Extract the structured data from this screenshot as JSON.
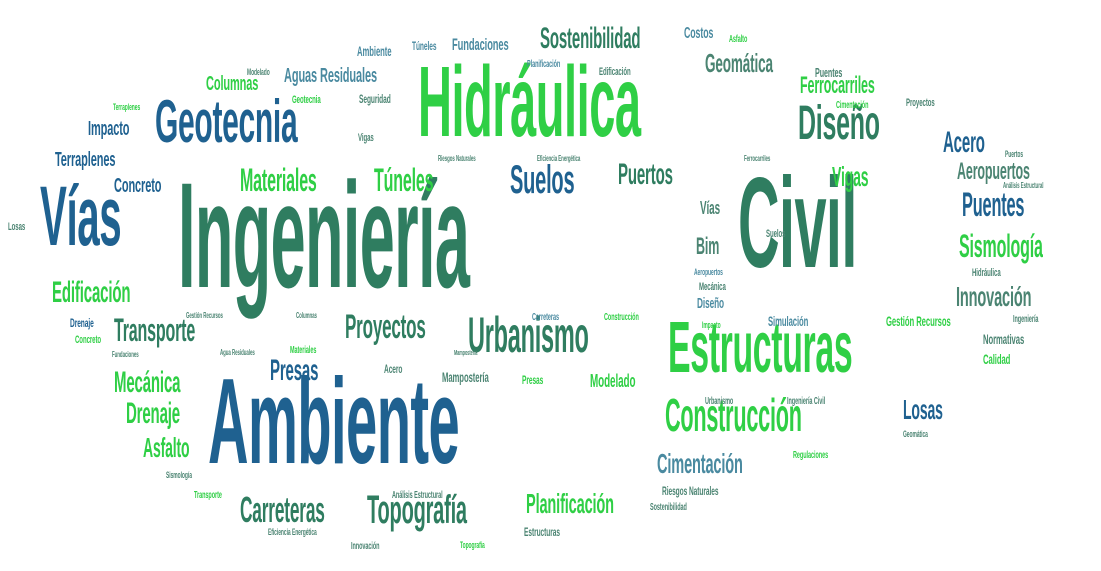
{
  "word_cloud": {
    "words": [
      {
        "text": "Ingeniería",
        "weight": 100,
        "color": "#2f7d60"
      },
      {
        "text": "Civil",
        "weight": 92,
        "color": "#2f7d60"
      },
      {
        "text": "Ambiente",
        "weight": 78,
        "color": "#1f6190"
      },
      {
        "text": "Hidráulica",
        "weight": 68,
        "color": "#2fcf45"
      },
      {
        "text": "Vías",
        "weight": 62,
        "color": "#1f6190"
      },
      {
        "text": "Estructuras",
        "weight": 58,
        "color": "#2fcf45"
      },
      {
        "text": "Geotecnia",
        "weight": 48,
        "color": "#1f6190"
      },
      {
        "text": "Diseño",
        "weight": 42,
        "color": "#2f7d60"
      },
      {
        "text": "Urbanismo",
        "weight": 40,
        "color": "#2f7d60"
      },
      {
        "text": "Construcción",
        "weight": 38,
        "color": "#2fcf45"
      },
      {
        "text": "Suelos",
        "weight": 34,
        "color": "#1f6190"
      },
      {
        "text": "Topografía",
        "weight": 32,
        "color": "#2f7d60"
      },
      {
        "text": "Proyectos",
        "weight": 30,
        "color": "#2f7d60"
      },
      {
        "text": "Carreteras",
        "weight": 28,
        "color": "#2f7d60"
      },
      {
        "text": "Materiales",
        "weight": 28,
        "color": "#2fcf45"
      },
      {
        "text": "Túneles",
        "weight": 28,
        "color": "#2fcf45"
      },
      {
        "text": "Puertos",
        "weight": 27,
        "color": "#2f7d60"
      },
      {
        "text": "Puentes",
        "weight": 27,
        "color": "#1f6190"
      },
      {
        "text": "Transporte",
        "weight": 27,
        "color": "#2f7d60"
      },
      {
        "text": "Sismología",
        "weight": 25,
        "color": "#2fcf45"
      },
      {
        "text": "Cimentación",
        "weight": 25,
        "color": "#4a8aa0"
      },
      {
        "text": "Edificación",
        "weight": 25,
        "color": "#2fcf45"
      },
      {
        "text": "Sostenibilidad",
        "weight": 24,
        "color": "#2f7d60"
      },
      {
        "text": "Mecánica",
        "weight": 24,
        "color": "#2fcf45"
      },
      {
        "text": "Presas",
        "weight": 24,
        "color": "#1f6190"
      },
      {
        "text": "Innovación",
        "weight": 24,
        "color": "#4b8472"
      },
      {
        "text": "Drenaje",
        "weight": 23,
        "color": "#2fcf45"
      },
      {
        "text": "Asfalto",
        "weight": 23,
        "color": "#2fcf45"
      },
      {
        "text": "Planificación",
        "weight": 23,
        "color": "#2fcf45"
      },
      {
        "text": "Acero",
        "weight": 23,
        "color": "#1f6190"
      },
      {
        "text": "Vigas",
        "weight": 22,
        "color": "#2fcf45"
      },
      {
        "text": "Losas",
        "weight": 22,
        "color": "#1f6190"
      },
      {
        "text": "Geomática",
        "weight": 21,
        "color": "#4b8472"
      },
      {
        "text": "Ferrocarriles",
        "weight": 21,
        "color": "#2fcf45"
      },
      {
        "text": "Aeropuertos",
        "weight": 20,
        "color": "#4b8472"
      },
      {
        "text": "Bim",
        "weight": 20,
        "color": "#4b8472"
      },
      {
        "text": "Impacto",
        "weight": 18,
        "color": "#1f6190"
      },
      {
        "text": "Terraplenes",
        "weight": 18,
        "color": "#1f6190"
      },
      {
        "text": "Concreto",
        "weight": 18,
        "color": "#1f6190"
      },
      {
        "text": "Columnas",
        "weight": 18,
        "color": "#2fcf45"
      },
      {
        "text": "Aguas Residuales",
        "weight": 18,
        "color": "#4a8aa0"
      },
      {
        "text": "Fundaciones",
        "weight": 16,
        "color": "#4a8aa0"
      },
      {
        "text": "Costos",
        "weight": 15,
        "color": "#4a8aa0"
      },
      {
        "text": "Modelado",
        "weight": 16,
        "color": "#2fcf45"
      },
      {
        "text": "Mampostería",
        "weight": 13,
        "color": "#4b8472"
      },
      {
        "text": "Vías",
        "weight": 16,
        "color": "#4b8472"
      },
      {
        "text": "Simulación",
        "weight": 13,
        "color": "#4a8aa0"
      },
      {
        "text": "Gestión Recursos",
        "weight": 13,
        "color": "#2fcf45"
      },
      {
        "text": "Normativas",
        "weight": 13,
        "color": "#4b8472"
      },
      {
        "text": "Calidad",
        "weight": 13,
        "color": "#2fcf45"
      },
      {
        "text": "Hidráulica",
        "weight": 10,
        "color": "#4b8472"
      },
      {
        "text": "Ambiente",
        "weight": 12,
        "color": "#4a8aa0"
      },
      {
        "text": "Túneles",
        "weight": 10,
        "color": "#4a8aa0"
      },
      {
        "text": "Seguridad",
        "weight": 11,
        "color": "#4b8472"
      },
      {
        "text": "Geotecnia",
        "weight": 9,
        "color": "#2fcf45"
      },
      {
        "text": "Proyectos",
        "weight": 9,
        "color": "#4b8472"
      },
      {
        "text": "Cimentación",
        "weight": 9,
        "color": "#2fcf45"
      },
      {
        "text": "Edificación",
        "weight": 10,
        "color": "#4b8472"
      },
      {
        "text": "Planificación",
        "weight": 9,
        "color": "#4a8aa0"
      },
      {
        "text": "Asfalto",
        "weight": 9,
        "color": "#2fcf45"
      },
      {
        "text": "Puentes",
        "weight": 11,
        "color": "#4b8472"
      },
      {
        "text": "Modelado",
        "weight": 8,
        "color": "#4b8472"
      },
      {
        "text": "Terraplenes",
        "weight": 8,
        "color": "#2fcf45"
      },
      {
        "text": "Vigas",
        "weight": 9,
        "color": "#4b8472"
      },
      {
        "text": "Riesgos Naturales",
        "weight": 7,
        "color": "#4b8472"
      },
      {
        "text": "Eficiencia Energética",
        "weight": 7,
        "color": "#4b8472"
      },
      {
        "text": "Ferrocarriles",
        "weight": 7,
        "color": "#4b8472"
      },
      {
        "text": "Puertos",
        "weight": 8,
        "color": "#4b8472"
      },
      {
        "text": "Análisis Estructural",
        "weight": 7,
        "color": "#4b8472"
      },
      {
        "text": "Losas",
        "weight": 9,
        "color": "#4b8472"
      },
      {
        "text": "Suelos",
        "weight": 9,
        "color": "#4b8472"
      },
      {
        "text": "Aeropuertos",
        "weight": 8,
        "color": "#4a8aa0"
      },
      {
        "text": "Mecánica",
        "weight": 9,
        "color": "#4b8472"
      },
      {
        "text": "Diseño",
        "weight": 13,
        "color": "#4a8aa0"
      },
      {
        "text": "Impacto",
        "weight": 8,
        "color": "#2fcf45"
      },
      {
        "text": "Ingeniería",
        "weight": 8,
        "color": "#4b8472"
      },
      {
        "text": "Drenaje",
        "weight": 10,
        "color": "#1f6190"
      },
      {
        "text": "Concreto",
        "weight": 9,
        "color": "#2fcf45"
      },
      {
        "text": "Fundaciones",
        "weight": 7,
        "color": "#4b8472"
      },
      {
        "text": "Gestión Recursos",
        "weight": 7,
        "color": "#4b8472"
      },
      {
        "text": "Agua Residuales",
        "weight": 7,
        "color": "#4b8472"
      },
      {
        "text": "Columnas",
        "weight": 7,
        "color": "#4b8472"
      },
      {
        "text": "Materiales",
        "weight": 8,
        "color": "#2fcf45"
      },
      {
        "text": "Carreteras",
        "weight": 8,
        "color": "#4a8aa0"
      },
      {
        "text": "Construcción",
        "weight": 8,
        "color": "#2fcf45"
      },
      {
        "text": "Mampostería",
        "weight": 7,
        "color": "#4b8472"
      },
      {
        "text": "Acero",
        "weight": 10,
        "color": "#4b8472"
      },
      {
        "text": "Presas",
        "weight": 10,
        "color": "#2fcf45"
      },
      {
        "text": "Urbanismo",
        "weight": 8,
        "color": "#4b8472"
      },
      {
        "text": "Ingeniería Civil",
        "weight": 8,
        "color": "#4b8472"
      },
      {
        "text": "Regulaciones",
        "weight": 8,
        "color": "#2fcf45"
      },
      {
        "text": "Geomática",
        "weight": 7,
        "color": "#4b8472"
      },
      {
        "text": "Sismología",
        "weight": 8,
        "color": "#4b8472"
      },
      {
        "text": "Transporte",
        "weight": 8,
        "color": "#2fcf45"
      },
      {
        "text": "Análisis Estructural",
        "weight": 8,
        "color": "#4b8472"
      },
      {
        "text": "Riesgos Naturales",
        "weight": 9,
        "color": "#4b8472"
      },
      {
        "text": "Sostenibilidad",
        "weight": 8,
        "color": "#4b8472"
      },
      {
        "text": "Eficiencia Energética",
        "weight": 8,
        "color": "#4b8472"
      },
      {
        "text": "Innovación",
        "weight": 9,
        "color": "#4b8472"
      },
      {
        "text": "Topografía",
        "weight": 8,
        "color": "#2fcf45"
      },
      {
        "text": "Estructuras",
        "weight": 10,
        "color": "#4b8472"
      }
    ]
  }
}
